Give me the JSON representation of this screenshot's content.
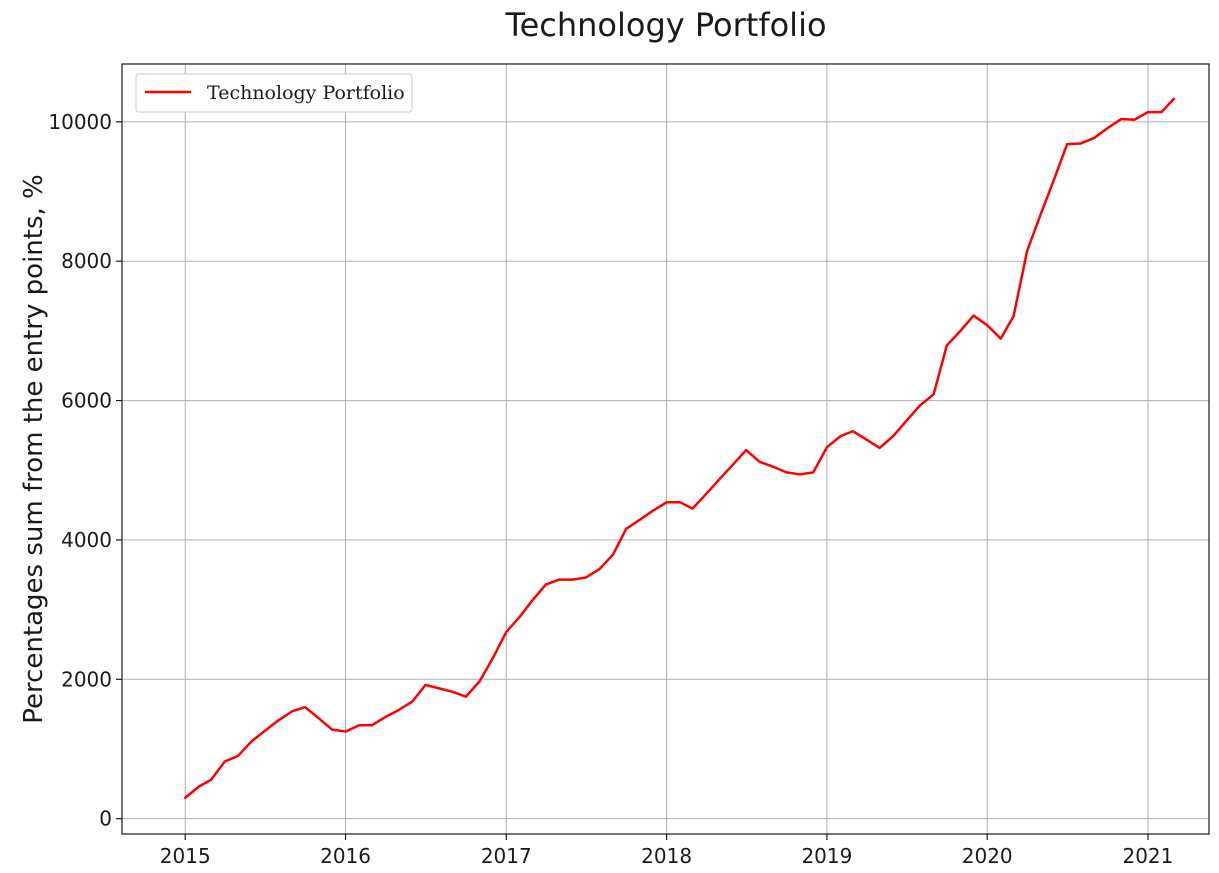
{
  "chart_data": {
    "type": "line",
    "title": "Technology Portfolio",
    "xlabel": "",
    "ylabel": "Percentages sum from the entry points, %",
    "x_ticks": [
      "2015",
      "2016",
      "2017",
      "2018",
      "2019",
      "2020",
      "2021"
    ],
    "y_ticks": [
      "0",
      "2000",
      "4000",
      "6000",
      "8000",
      "10000"
    ],
    "xlim": [
      "2014-08-10",
      "2021-05-20"
    ],
    "ylim": [
      -220,
      10830
    ],
    "grid": true,
    "legend_position": "upper-left",
    "series": [
      {
        "name": "Technology Portfolio",
        "color": "#ff0000",
        "points": [
          [
            "2015-01-01",
            300
          ],
          [
            "2015-02-01",
            460
          ],
          [
            "2015-03-01",
            560
          ],
          [
            "2015-04-01",
            820
          ],
          [
            "2015-05-01",
            900
          ],
          [
            "2015-06-01",
            1110
          ],
          [
            "2015-07-01",
            1260
          ],
          [
            "2015-08-01",
            1410
          ],
          [
            "2015-09-01",
            1540
          ],
          [
            "2015-10-01",
            1600
          ],
          [
            "2015-11-01",
            1440
          ],
          [
            "2015-12-01",
            1280
          ],
          [
            "2016-01-01",
            1250
          ],
          [
            "2016-02-01",
            1340
          ],
          [
            "2016-03-01",
            1340
          ],
          [
            "2016-04-01",
            1460
          ],
          [
            "2016-05-01",
            1560
          ],
          [
            "2016-06-01",
            1680
          ],
          [
            "2016-07-01",
            1920
          ],
          [
            "2016-08-01",
            1870
          ],
          [
            "2016-09-01",
            1820
          ],
          [
            "2016-10-01",
            1750
          ],
          [
            "2016-11-01",
            1970
          ],
          [
            "2016-12-01",
            2300
          ],
          [
            "2017-01-01",
            2680
          ],
          [
            "2017-02-01",
            2900
          ],
          [
            "2017-03-01",
            3130
          ],
          [
            "2017-04-01",
            3360
          ],
          [
            "2017-05-01",
            3430
          ],
          [
            "2017-06-01",
            3430
          ],
          [
            "2017-07-01",
            3460
          ],
          [
            "2017-08-01",
            3580
          ],
          [
            "2017-09-01",
            3790
          ],
          [
            "2017-10-01",
            4160
          ],
          [
            "2017-11-01",
            4290
          ],
          [
            "2017-12-01",
            4420
          ],
          [
            "2018-01-01",
            4540
          ],
          [
            "2018-02-01",
            4540
          ],
          [
            "2018-03-01",
            4450
          ],
          [
            "2018-04-01",
            4660
          ],
          [
            "2018-05-01",
            4870
          ],
          [
            "2018-06-01",
            5080
          ],
          [
            "2018-07-01",
            5290
          ],
          [
            "2018-08-01",
            5120
          ],
          [
            "2018-09-01",
            5050
          ],
          [
            "2018-10-01",
            4970
          ],
          [
            "2018-11-01",
            4940
          ],
          [
            "2018-12-01",
            4970
          ],
          [
            "2019-01-01",
            5330
          ],
          [
            "2019-02-01",
            5490
          ],
          [
            "2019-03-01",
            5560
          ],
          [
            "2019-04-01",
            5440
          ],
          [
            "2019-05-01",
            5320
          ],
          [
            "2019-06-01",
            5490
          ],
          [
            "2019-07-01",
            5710
          ],
          [
            "2019-08-01",
            5930
          ],
          [
            "2019-09-01",
            6090
          ],
          [
            "2019-10-01",
            6790
          ],
          [
            "2019-11-01",
            7000
          ],
          [
            "2019-12-01",
            7220
          ],
          [
            "2020-01-01",
            7080
          ],
          [
            "2020-02-01",
            6890
          ],
          [
            "2020-03-01",
            7210
          ],
          [
            "2020-04-01",
            8150
          ],
          [
            "2020-05-01",
            8660
          ],
          [
            "2020-06-01",
            9170
          ],
          [
            "2020-07-01",
            9680
          ],
          [
            "2020-08-01",
            9690
          ],
          [
            "2020-09-01",
            9770
          ],
          [
            "2020-10-01",
            9910
          ],
          [
            "2020-11-01",
            10040
          ],
          [
            "2020-12-01",
            10030
          ],
          [
            "2021-01-01",
            10140
          ],
          [
            "2021-02-01",
            10140
          ],
          [
            "2021-03-01",
            10330
          ]
        ]
      }
    ]
  }
}
